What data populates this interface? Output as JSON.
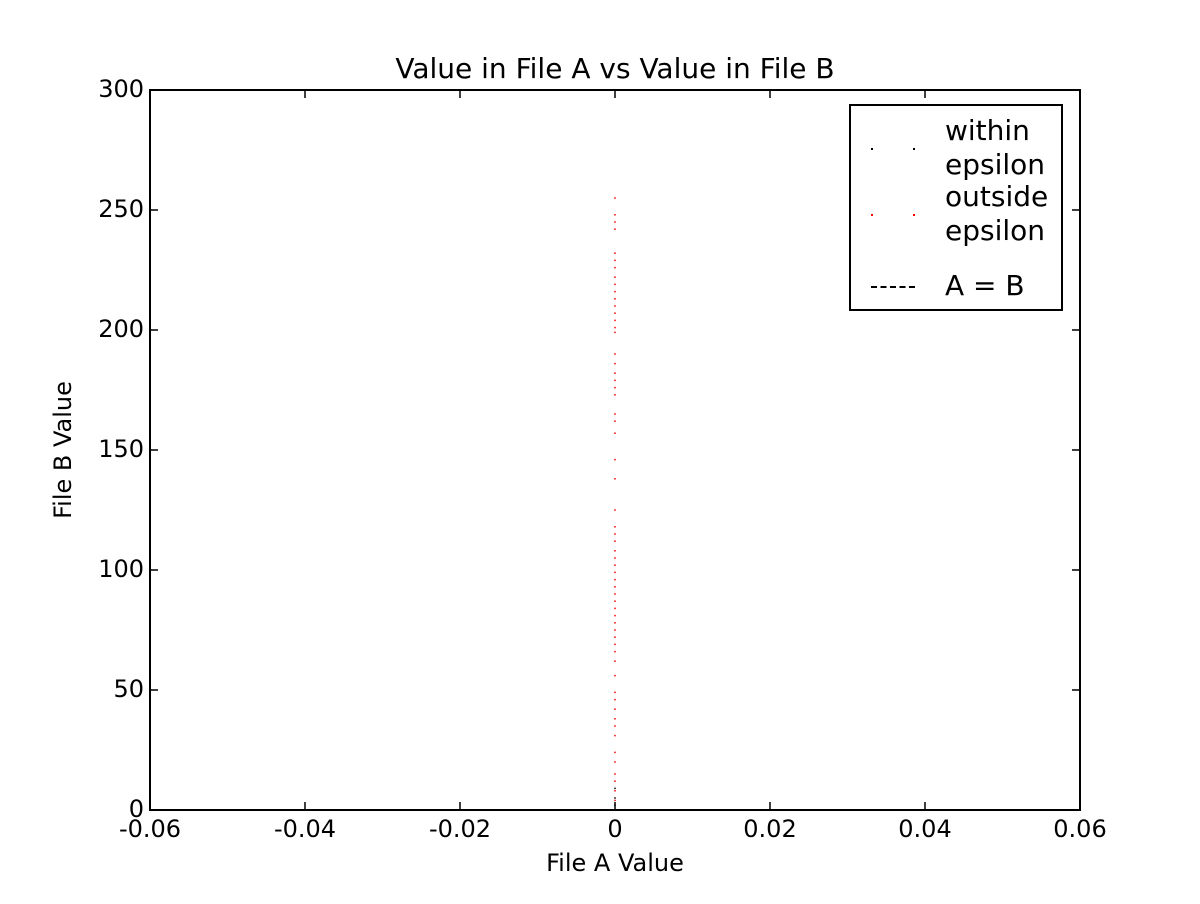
{
  "chart_data": {
    "type": "scatter",
    "title": "Value in File A vs Value in File B",
    "xlabel": "File A Value",
    "ylabel": "File B Value",
    "xlim": [
      -0.06,
      0.06
    ],
    "ylim": [
      0,
      300
    ],
    "xticks": [
      -0.06,
      -0.04,
      -0.02,
      0,
      0.02,
      0.04,
      0.06
    ],
    "yticks": [
      0,
      50,
      100,
      150,
      200,
      250,
      300
    ],
    "legend": "upper right",
    "series": [
      {
        "name": "within epsilon",
        "color": "#000000",
        "marker": "point",
        "x": [
          0,
          0,
          0
        ],
        "values": [
          2,
          5,
          9
        ]
      },
      {
        "name": "outside epsilon",
        "color": "#ff0000",
        "marker": "point",
        "x": [
          0,
          0,
          0,
          0,
          0,
          0,
          0,
          0,
          0,
          0,
          0,
          0,
          0,
          0,
          0,
          0,
          0,
          0,
          0,
          0,
          0,
          0,
          0,
          0,
          0,
          0,
          0,
          0,
          0,
          0,
          0,
          0,
          0,
          0,
          0,
          0,
          0,
          0,
          0,
          0,
          0,
          0,
          0,
          0,
          0,
          0,
          0,
          0,
          0,
          0,
          0,
          0,
          0,
          0,
          0,
          0,
          0,
          0,
          0,
          0
        ],
        "values": [
          255,
          248,
          245,
          242,
          232,
          229,
          226,
          222,
          219,
          216,
          213,
          210,
          207,
          204,
          201,
          199,
          190,
          186,
          182,
          179,
          176,
          173,
          165,
          162,
          157,
          146,
          138,
          125,
          118,
          115,
          112,
          108,
          105,
          102,
          99,
          96,
          93,
          90,
          87,
          84,
          81,
          78,
          75,
          72,
          69,
          66,
          62,
          56,
          49,
          46,
          42,
          38,
          35,
          31,
          24,
          20,
          15,
          12,
          8,
          4
        ]
      },
      {
        "name": "A = B",
        "color": "#000000",
        "marker": "dashed",
        "x": [
          0,
          0.06
        ],
        "values": [
          0,
          0.06
        ]
      }
    ]
  }
}
